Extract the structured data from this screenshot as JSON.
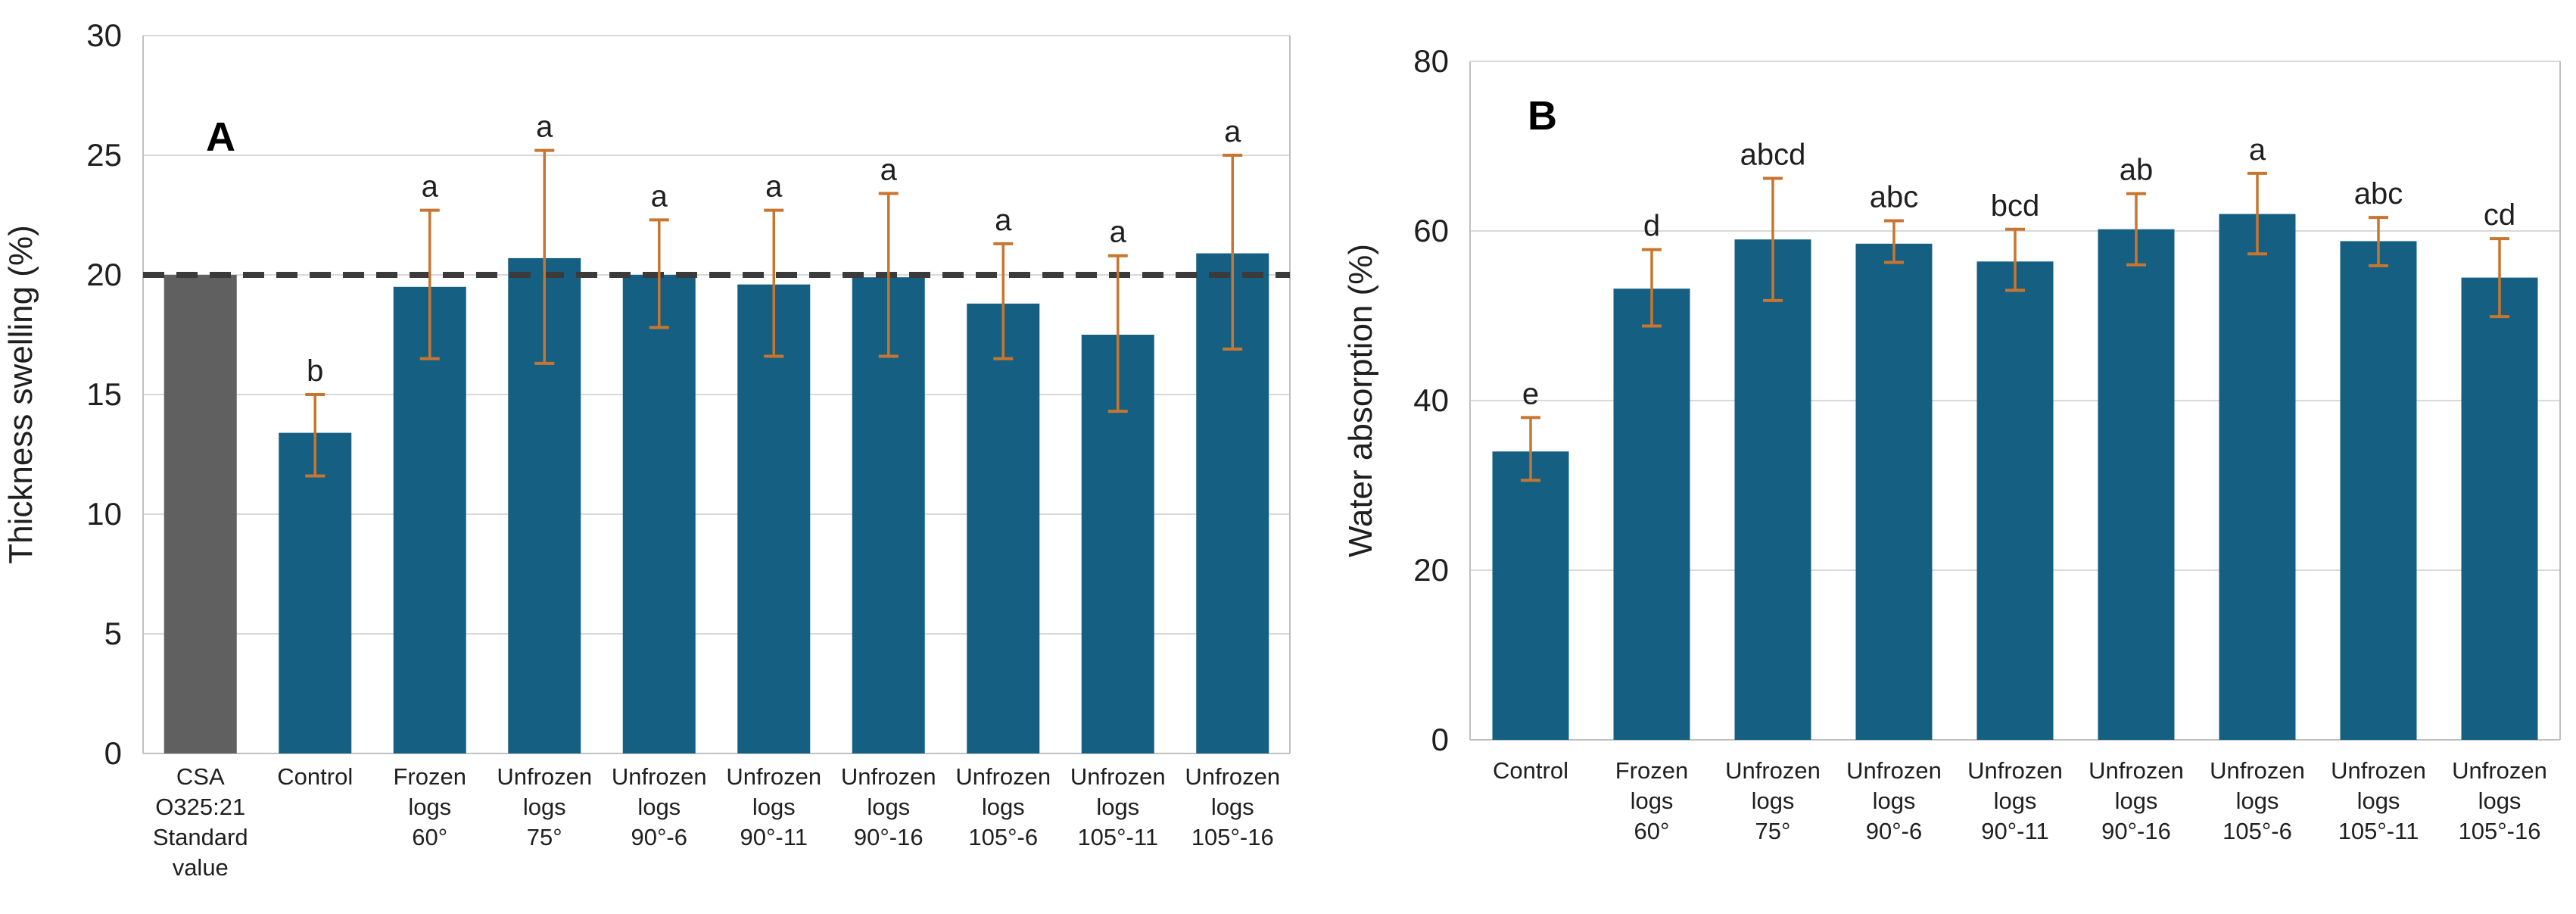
{
  "colors": {
    "bar_teal": "#156082",
    "bar_gray": "#606060",
    "error_bar": "#C8762F",
    "dashed_line": "#3B3B3B",
    "gridline": "#D9D9D9",
    "axis_line": "#C0C0C0",
    "text": "#1F1F1F",
    "background": "#FFFFFF"
  },
  "chart_data": [
    {
      "id": "A",
      "type": "bar",
      "panel_label": "A",
      "ylabel": "Thickness swelling (%)",
      "xlabel": "",
      "ylim": [
        0,
        30
      ],
      "yticks": [
        0,
        5,
        10,
        15,
        20,
        25,
        30
      ],
      "grid": true,
      "legend": "none",
      "reference_line": {
        "value": 20,
        "style": "dashed"
      },
      "categories": [
        [
          "CSA",
          "O325:21",
          "Standard",
          "value"
        ],
        [
          "Control"
        ],
        [
          "Frozen",
          "logs",
          "60°"
        ],
        [
          "Unfrozen",
          "logs",
          "75°"
        ],
        [
          "Unfrozen",
          "logs",
          "90°-6"
        ],
        [
          "Unfrozen",
          "logs",
          "90°-11"
        ],
        [
          "Unfrozen",
          "logs",
          "90°-16"
        ],
        [
          "Unfrozen",
          "logs",
          "105°-6"
        ],
        [
          "Unfrozen",
          "logs",
          "105°-11"
        ],
        [
          "Unfrozen",
          "logs",
          "105°-16"
        ]
      ],
      "values": [
        20.0,
        13.4,
        19.5,
        20.7,
        20.0,
        19.6,
        19.9,
        18.8,
        17.5,
        20.9
      ],
      "error_low": [
        null,
        11.6,
        16.5,
        16.3,
        17.8,
        16.6,
        16.6,
        16.5,
        14.3,
        16.9
      ],
      "error_high": [
        null,
        15.0,
        22.7,
        25.2,
        22.3,
        22.7,
        23.4,
        21.3,
        20.8,
        25.0
      ],
      "sig_letters": [
        "",
        "b",
        "a",
        "a",
        "a",
        "a",
        "a",
        "a",
        "a",
        "a"
      ],
      "bar_roles": [
        "reference",
        "treatment",
        "treatment",
        "treatment",
        "treatment",
        "treatment",
        "treatment",
        "treatment",
        "treatment",
        "treatment"
      ]
    },
    {
      "id": "B",
      "type": "bar",
      "panel_label": "B",
      "ylabel": "Water absorption (%)",
      "xlabel": "",
      "ylim": [
        0,
        80
      ],
      "yticks": [
        0,
        20,
        40,
        60,
        80
      ],
      "grid": true,
      "legend": "none",
      "reference_line": null,
      "categories": [
        [
          "Control"
        ],
        [
          "Frozen",
          "logs",
          "60°"
        ],
        [
          "Unfrozen",
          "logs",
          "75°"
        ],
        [
          "Unfrozen",
          "logs",
          "90°-6"
        ],
        [
          "Unfrozen",
          "logs",
          "90°-11"
        ],
        [
          "Unfrozen",
          "logs",
          "90°-16"
        ],
        [
          "Unfrozen",
          "logs",
          "105°-6"
        ],
        [
          "Unfrozen",
          "logs",
          "105°-11"
        ],
        [
          "Unfrozen",
          "logs",
          "105°-16"
        ]
      ],
      "values": [
        34.0,
        53.2,
        59.0,
        58.5,
        56.4,
        60.2,
        62.0,
        58.8,
        54.5
      ],
      "error_low": [
        30.6,
        48.8,
        51.8,
        56.3,
        53.0,
        56.0,
        57.3,
        55.9,
        49.9
      ],
      "error_high": [
        38.0,
        57.8,
        66.2,
        61.2,
        60.2,
        64.4,
        66.8,
        61.6,
        59.1
      ],
      "sig_letters": [
        "e",
        "d",
        "abcd",
        "abc",
        "bcd",
        "ab",
        "a",
        "abc",
        "cd"
      ],
      "bar_roles": [
        "treatment",
        "treatment",
        "treatment",
        "treatment",
        "treatment",
        "treatment",
        "treatment",
        "treatment",
        "treatment"
      ]
    }
  ]
}
